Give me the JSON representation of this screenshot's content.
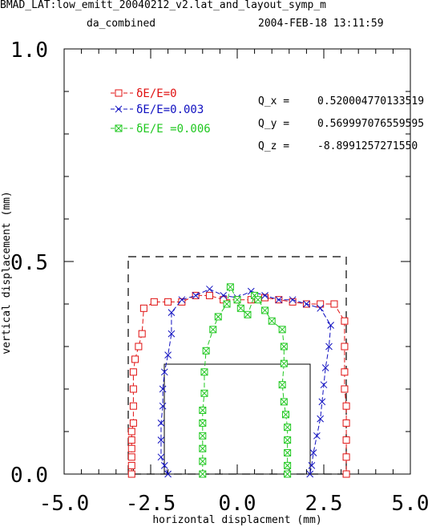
{
  "header": {
    "line1": "BMAD_LAT:low_emitt_20040212_v2.lat_and_layout_symp_m",
    "line2_left": "da_combined",
    "line2_right": "2004-FEB-18  13:11:59"
  },
  "tunes": [
    {
      "label": "Q_x =",
      "value": "0.520004770133519"
    },
    {
      "label": "Q_y =",
      "value": "0.569997076559595"
    },
    {
      "label": "Q_z =",
      "value": "-8.8991257271550"
    }
  ],
  "chart_data": {
    "type": "line",
    "xlabel": "horizontal displacment (mm)",
    "ylabel": "vertical displacement (mm)",
    "xlim": [
      -5.0,
      5.0
    ],
    "ylim": [
      0.0,
      1.0
    ],
    "xticks": [
      -5.0,
      -2.5,
      0.0,
      2.5,
      5.0
    ],
    "xtick_labels": [
      "-5.0",
      "-2.5",
      "0.0",
      "2.5",
      "5.0"
    ],
    "yticks": [
      0.0,
      0.5,
      1.0
    ],
    "ytick_labels": [
      "0.0",
      "0.5",
      "1.0"
    ],
    "legend_position": "top-left",
    "series": [
      {
        "name": "δE/E=0",
        "color": "#e01010",
        "marker": "square",
        "points": [
          [
            -3.05,
            0.0
          ],
          [
            -3.05,
            0.02
          ],
          [
            -3.05,
            0.04
          ],
          [
            -3.05,
            0.06
          ],
          [
            -3.05,
            0.08
          ],
          [
            -3.05,
            0.1
          ],
          [
            -3.0,
            0.12
          ],
          [
            -3.0,
            0.16
          ],
          [
            -3.0,
            0.2
          ],
          [
            -3.0,
            0.24
          ],
          [
            -2.95,
            0.27
          ],
          [
            -2.85,
            0.3
          ],
          [
            -2.75,
            0.33
          ],
          [
            -2.7,
            0.39
          ],
          [
            -2.4,
            0.405
          ],
          [
            -2.0,
            0.405
          ],
          [
            -1.6,
            0.405
          ],
          [
            -1.2,
            0.42
          ],
          [
            -0.8,
            0.42
          ],
          [
            -0.4,
            0.41
          ],
          [
            0.0,
            0.41
          ],
          [
            0.4,
            0.41
          ],
          [
            0.8,
            0.415
          ],
          [
            1.2,
            0.41
          ],
          [
            1.6,
            0.405
          ],
          [
            2.0,
            0.4
          ],
          [
            2.4,
            0.4
          ],
          [
            2.8,
            0.4
          ],
          [
            3.1,
            0.36
          ],
          [
            3.1,
            0.3
          ],
          [
            3.1,
            0.24
          ],
          [
            3.1,
            0.2
          ],
          [
            3.15,
            0.16
          ],
          [
            3.15,
            0.12
          ],
          [
            3.15,
            0.08
          ],
          [
            3.15,
            0.04
          ],
          [
            3.15,
            0.0
          ]
        ]
      },
      {
        "name": "δE/E=0.003",
        "color": "#1010c0",
        "marker": "x",
        "points": [
          [
            -2.0,
            0.0
          ],
          [
            -2.1,
            0.02
          ],
          [
            -2.2,
            0.04
          ],
          [
            -2.2,
            0.08
          ],
          [
            -2.2,
            0.12
          ],
          [
            -2.15,
            0.16
          ],
          [
            -2.15,
            0.2
          ],
          [
            -2.1,
            0.24
          ],
          [
            -2.0,
            0.28
          ],
          [
            -1.9,
            0.33
          ],
          [
            -1.9,
            0.38
          ],
          [
            -1.6,
            0.41
          ],
          [
            -1.2,
            0.42
          ],
          [
            -0.8,
            0.435
          ],
          [
            -0.4,
            0.42
          ],
          [
            0.0,
            0.415
          ],
          [
            0.4,
            0.43
          ],
          [
            0.8,
            0.42
          ],
          [
            1.2,
            0.41
          ],
          [
            1.6,
            0.41
          ],
          [
            2.0,
            0.4
          ],
          [
            2.4,
            0.39
          ],
          [
            2.7,
            0.35
          ],
          [
            2.65,
            0.3
          ],
          [
            2.55,
            0.25
          ],
          [
            2.5,
            0.21
          ],
          [
            2.45,
            0.17
          ],
          [
            2.4,
            0.13
          ],
          [
            2.3,
            0.09
          ],
          [
            2.2,
            0.05
          ],
          [
            2.15,
            0.02
          ],
          [
            2.1,
            0.0
          ]
        ]
      },
      {
        "name": "δE/E =0.006",
        "color": "#20c820",
        "marker": "boxed-x",
        "points": [
          [
            -1.0,
            0.0
          ],
          [
            -1.0,
            0.03
          ],
          [
            -1.0,
            0.06
          ],
          [
            -1.0,
            0.09
          ],
          [
            -1.0,
            0.12
          ],
          [
            -1.0,
            0.15
          ],
          [
            -0.95,
            0.19
          ],
          [
            -0.95,
            0.24
          ],
          [
            -0.9,
            0.29
          ],
          [
            -0.7,
            0.34
          ],
          [
            -0.55,
            0.37
          ],
          [
            -0.3,
            0.4
          ],
          [
            -0.2,
            0.44
          ],
          [
            0.0,
            0.41
          ],
          [
            0.1,
            0.39
          ],
          [
            0.3,
            0.375
          ],
          [
            0.5,
            0.42
          ],
          [
            0.6,
            0.41
          ],
          [
            0.8,
            0.385
          ],
          [
            1.0,
            0.36
          ],
          [
            1.3,
            0.34
          ],
          [
            1.35,
            0.3
          ],
          [
            1.35,
            0.26
          ],
          [
            1.3,
            0.21
          ],
          [
            1.35,
            0.17
          ],
          [
            1.4,
            0.14
          ],
          [
            1.45,
            0.11
          ],
          [
            1.45,
            0.08
          ],
          [
            1.45,
            0.05
          ],
          [
            1.45,
            0.02
          ],
          [
            1.45,
            0.0
          ]
        ]
      }
    ]
  }
}
